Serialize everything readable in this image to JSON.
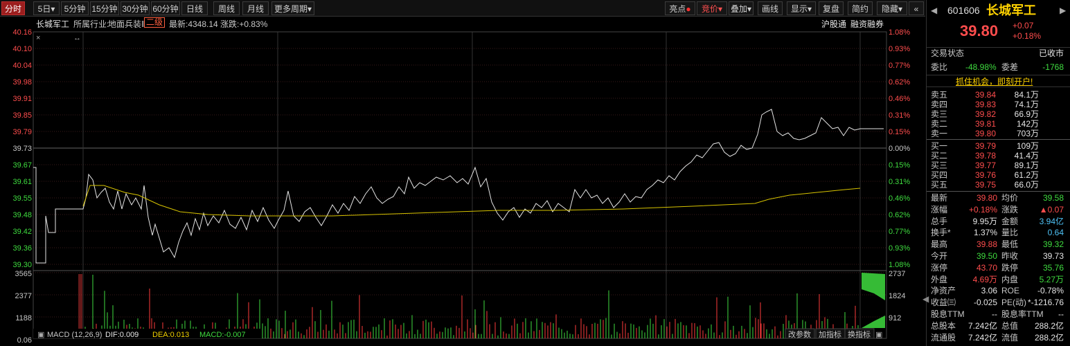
{
  "toolbar": {
    "periods": [
      "分时",
      "5日",
      "5分钟",
      "15分钟",
      "30分钟",
      "60分钟",
      "日线",
      "周线",
      "月线",
      "更多周期"
    ],
    "right_buttons": [
      "亮点",
      "竞价",
      "叠加",
      "画线",
      "显示",
      "复盘",
      "简约",
      "隐藏"
    ]
  },
  "info": {
    "name": "长城军工",
    "industry_label": "所属行业:",
    "industry": "地面兵装Ⅱ",
    "level": "二级",
    "latest": "最新:4348.14",
    "change": "涨跌:+0.83%",
    "links": [
      "沪股通",
      "融资融券"
    ]
  },
  "price_axis": {
    "left": [
      "40.16",
      "40.10",
      "40.04",
      "39.98",
      "39.91",
      "39.85",
      "39.79",
      "39.73",
      "39.67",
      "39.61",
      "39.55",
      "39.48",
      "39.42",
      "39.36",
      "39.30"
    ],
    "right": [
      "1.08%",
      "0.93%",
      "0.77%",
      "0.62%",
      "0.46%",
      "0.31%",
      "0.15%",
      "0.00%",
      "0.15%",
      "0.31%",
      "0.46%",
      "0.62%",
      "0.77%",
      "0.93%",
      "1.08%"
    ]
  },
  "volume_axis": {
    "left": [
      "3565",
      "2377",
      "1188"
    ],
    "right": [
      "2737",
      "1824",
      "912"
    ],
    "bottom_left": "0.06"
  },
  "macd": {
    "label": "MACD (12,26,9)",
    "dif": "DIF:0.009",
    "dea": "DEA:0.013",
    "macd": "MACD:-0.007",
    "buttons": [
      "改参数",
      "加指标",
      "换指标"
    ]
  },
  "chart_data": {
    "type": "line",
    "prev_close": 39.73,
    "ylim": [
      39.3,
      40.16
    ],
    "series": []
  },
  "quote": {
    "code": "601606",
    "name": "长城军工",
    "price": "39.80",
    "chg": "+0.07",
    "pct": "+0.18%",
    "status_label": "交易状态",
    "status": "已收市",
    "wb_label": "委比",
    "wb": "-48.98%",
    "wc_label": "委差",
    "wc": "-1768",
    "banner": "抓住机会，即刻开户!",
    "sells": [
      {
        "label": "卖五",
        "price": "39.84",
        "vol": "84.1万"
      },
      {
        "label": "卖四",
        "price": "39.83",
        "vol": "74.1万"
      },
      {
        "label": "卖三",
        "price": "39.82",
        "vol": "66.9万"
      },
      {
        "label": "卖二",
        "price": "39.81",
        "vol": "142万"
      },
      {
        "label": "卖一",
        "price": "39.80",
        "vol": "703万"
      }
    ],
    "buys": [
      {
        "label": "买一",
        "price": "39.79",
        "vol": "109万"
      },
      {
        "label": "买二",
        "price": "39.78",
        "vol": "41.4万"
      },
      {
        "label": "买三",
        "price": "39.77",
        "vol": "89.1万"
      },
      {
        "label": "买四",
        "price": "39.76",
        "vol": "61.2万"
      },
      {
        "label": "买五",
        "price": "39.75",
        "vol": "66.0万"
      }
    ],
    "stats": [
      [
        "最新",
        "39.80",
        "red",
        "均价",
        "39.58",
        "green"
      ],
      [
        "涨幅",
        "+0.18%",
        "red",
        "涨跌",
        "▲0.07",
        "red"
      ],
      [
        "总手",
        "9.95万",
        "white",
        "金额",
        "3.94亿",
        "cyan"
      ],
      [
        "换手*",
        "1.37%",
        "white",
        "量比",
        "0.64",
        "cyan"
      ],
      [
        "最高",
        "39.88",
        "red",
        "最低",
        "39.32",
        "green"
      ],
      [
        "今开",
        "39.50",
        "green",
        "昨收",
        "39.73",
        "white"
      ],
      [
        "涨停",
        "43.70",
        "red",
        "跌停",
        "35.76",
        "green"
      ],
      [
        "外盘",
        "4.69万",
        "red",
        "内盘",
        "5.27万",
        "green"
      ],
      [
        "净资产",
        "3.06",
        "white",
        "ROE",
        "-0.78%",
        "white"
      ],
      [
        "收益㈢",
        "-0.025",
        "white",
        "PE(动)",
        "*-1216.76",
        "white"
      ],
      [
        "股息TTM",
        "--",
        "white",
        "股息率TTM",
        "--",
        "white"
      ],
      [
        "总股本",
        "7.242亿",
        "white",
        "总值",
        "288.2亿",
        "white"
      ],
      [
        "流通股",
        "7.242亿",
        "white",
        "流值",
        "288.2亿",
        "white"
      ]
    ]
  }
}
